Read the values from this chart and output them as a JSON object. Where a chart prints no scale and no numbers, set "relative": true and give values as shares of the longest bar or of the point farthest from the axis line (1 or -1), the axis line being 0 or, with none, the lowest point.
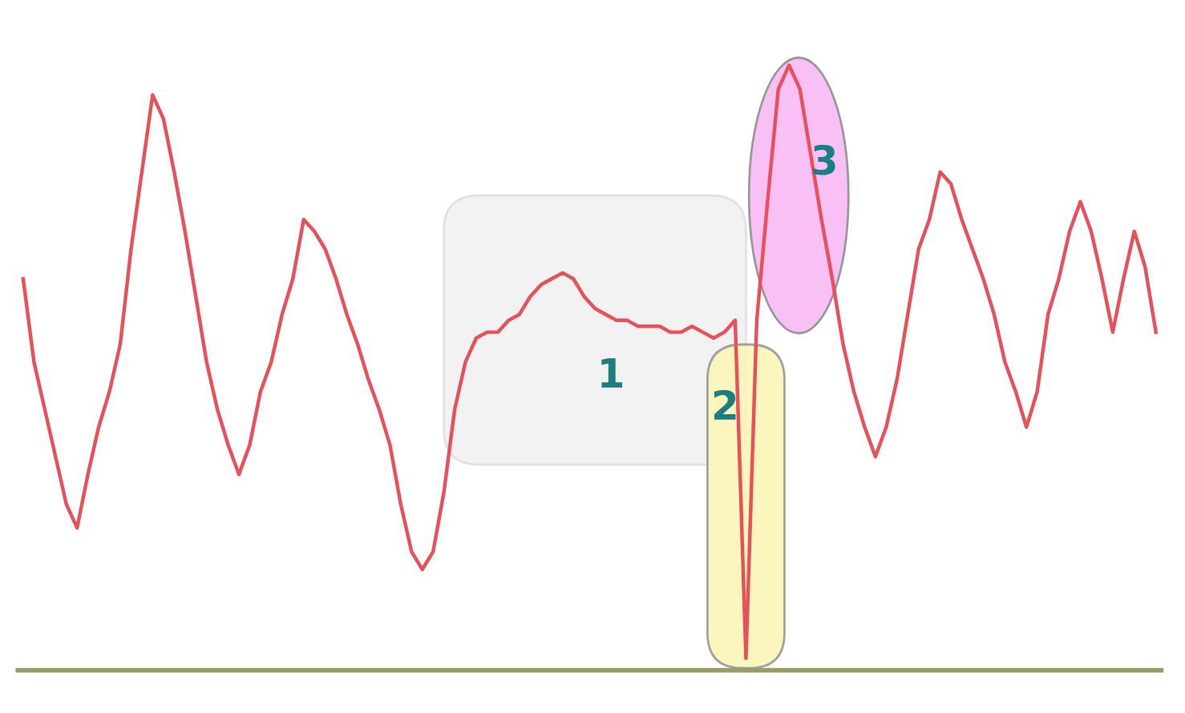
{
  "chart_data": {
    "type": "line",
    "relative": true,
    "color": "#e8505a",
    "categories": [
      null,
      null,
      null,
      null,
      null,
      null,
      null,
      null,
      null,
      null,
      null,
      null,
      null,
      null,
      null,
      null,
      null,
      null,
      null,
      null,
      null,
      null,
      null,
      null,
      null,
      null,
      null,
      null,
      null,
      null,
      null,
      null,
      null,
      null,
      null,
      null,
      null,
      null,
      null,
      null,
      null,
      null,
      null,
      null,
      null,
      null,
      null,
      null,
      null,
      null,
      null,
      null,
      null,
      null,
      null,
      null,
      null,
      null,
      null,
      null,
      null,
      null,
      null,
      null,
      null,
      null,
      null,
      null,
      null,
      null,
      null,
      null,
      null,
      null,
      null,
      null,
      null,
      null,
      null,
      null,
      null,
      null,
      null,
      null,
      null,
      null,
      null,
      null,
      null,
      null,
      null,
      null,
      null,
      null,
      null,
      null,
      null,
      null,
      null,
      null,
      null,
      null,
      null,
      null,
      null,
      null
    ],
    "values": [
      0.64,
      0.5,
      0.42,
      0.34,
      0.26,
      0.22,
      0.31,
      0.39,
      0.45,
      0.53,
      0.69,
      0.82,
      0.95,
      0.91,
      0.82,
      0.72,
      0.61,
      0.5,
      0.42,
      0.36,
      0.31,
      0.36,
      0.45,
      0.5,
      0.58,
      0.64,
      0.74,
      0.72,
      0.69,
      0.64,
      0.58,
      0.53,
      0.47,
      0.42,
      0.36,
      0.26,
      0.18,
      0.15,
      0.18,
      0.28,
      0.42,
      0.5,
      0.54,
      0.55,
      0.55,
      0.57,
      0.58,
      0.61,
      0.63,
      0.64,
      0.65,
      0.64,
      0.61,
      0.59,
      0.58,
      0.57,
      0.57,
      0.56,
      0.56,
      0.56,
      0.55,
      0.55,
      0.56,
      0.55,
      0.54,
      0.55,
      0.57,
      0,
      0.57,
      0.77,
      0.96,
      1,
      0.96,
      0.85,
      0.74,
      0.64,
      0.53,
      0.45,
      0.39,
      0.34,
      0.39,
      0.47,
      0.58,
      0.69,
      0.74,
      0.82,
      0.8,
      0.74,
      0.69,
      0.64,
      0.58,
      0.5,
      0.45,
      0.39,
      0.45,
      0.58,
      0.64,
      0.72,
      0.77,
      0.72,
      0.64,
      0.55,
      0.64,
      0.72,
      0.66,
      0.55
    ],
    "annotations": [
      "1",
      "2",
      "3"
    ],
    "legend": false
  }
}
